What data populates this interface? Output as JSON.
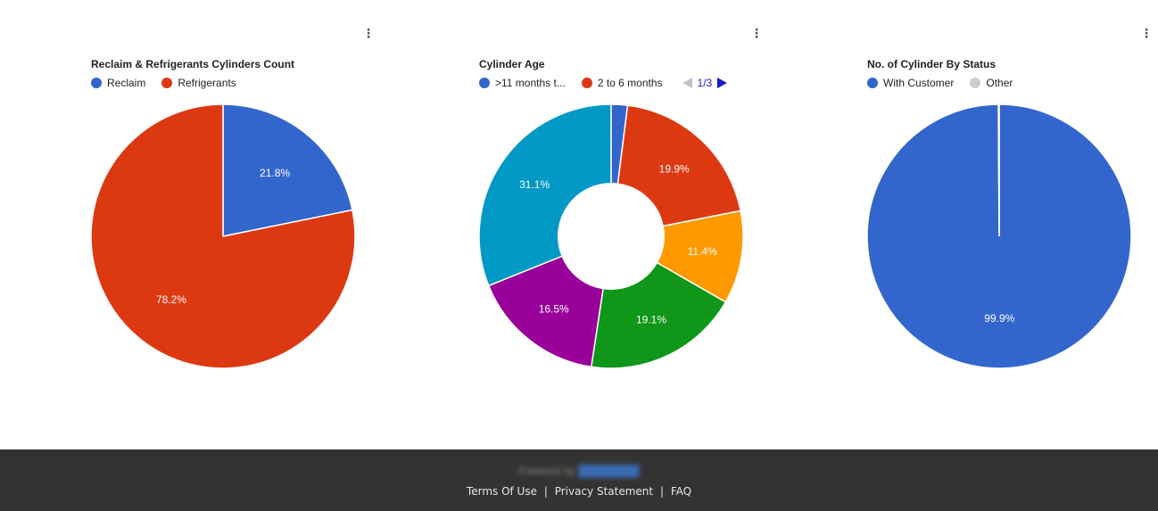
{
  "charts": [
    {
      "id": "reclaim-refrigerants",
      "title": "Reclaim & Refrigerants Cylinders Count",
      "menu_icon": "kebab-menu-icon",
      "legend": [
        {
          "label": "Reclaim",
          "color": "#3366cc"
        },
        {
          "label": "Refrigerants",
          "color": "#dc3912"
        }
      ]
    },
    {
      "id": "cylinder-age",
      "title": "Cylinder Age",
      "menu_icon": "kebab-menu-icon",
      "legend": [
        {
          "label": ">11 months t...",
          "color": "#3366cc"
        },
        {
          "label": "2 to 6 months",
          "color": "#dc3912"
        }
      ],
      "pager": "1/3"
    },
    {
      "id": "cylinder-status",
      "title": "No. of Cylinder By Status",
      "menu_icon": "kebab-menu-icon",
      "legend": [
        {
          "label": "With Customer",
          "color": "#3366cc"
        },
        {
          "label": "Other",
          "color": "#cccccc"
        }
      ]
    }
  ],
  "chart_data": [
    {
      "type": "pie",
      "title": "Reclaim & Refrigerants Cylinders Count",
      "legend_position": "top-left",
      "slices": [
        {
          "name": "Reclaim",
          "value": 21.8,
          "label": "21.8%",
          "color": "#3366cc"
        },
        {
          "name": "Refrigerants",
          "value": 78.2,
          "label": "78.2%",
          "color": "#dc3912"
        }
      ]
    },
    {
      "type": "pie",
      "donut": true,
      "title": "Cylinder Age",
      "legend_position": "top-left",
      "slices": [
        {
          "name": ">11 months t...",
          "value": 2.0,
          "label": "",
          "color": "#3366cc"
        },
        {
          "name": "2 to 6 months",
          "value": 19.9,
          "label": "19.9%",
          "color": "#dc3912"
        },
        {
          "value": 11.4,
          "label": "11.4%",
          "color": "#ff9900"
        },
        {
          "value": 19.1,
          "label": "19.1%",
          "color": "#109618"
        },
        {
          "value": 16.5,
          "label": "16.5%",
          "color": "#990099"
        },
        {
          "value": 31.1,
          "label": "31.1%",
          "color": "#0099c6"
        }
      ]
    },
    {
      "type": "pie",
      "title": "No. of Cylinder By Status",
      "legend_position": "top-left",
      "slices": [
        {
          "name": "With Customer",
          "value": 99.9,
          "label": "99.9%",
          "color": "#3366cc"
        },
        {
          "name": "Other",
          "value": 0.1,
          "label": "",
          "color": "#cccccc"
        }
      ]
    }
  ],
  "footer": {
    "powered_by": "Powered by",
    "powered_brand": "████████",
    "links": [
      "Terms Of Use",
      "Privacy Statement",
      "FAQ"
    ],
    "separator": "|",
    "background": "#333333"
  }
}
